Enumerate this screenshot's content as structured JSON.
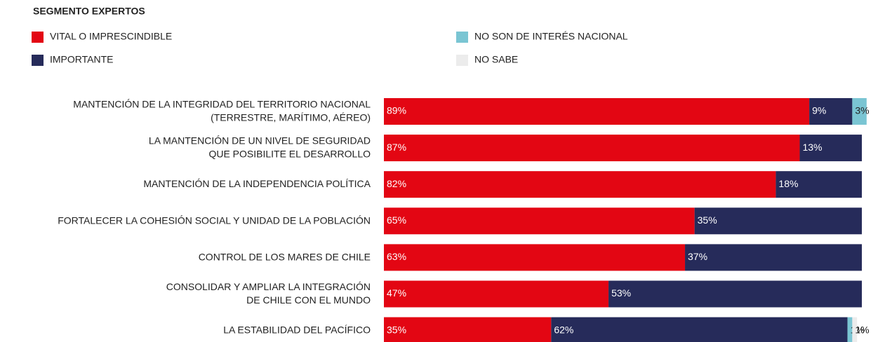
{
  "chart_data": {
    "type": "stacked-bar-horizontal",
    "title": "SEGMENTO EXPERTOS",
    "categories": [
      "MANTENCIÓN DE LA INTEGRIDAD DEL TERRITORIO NACIONAL\n(TERRESTRE, MARÍTIMO, AÉREO)",
      "LA MANTENCIÓN DE UN NIVEL DE SEGURIDAD\nQUE POSIBILITE EL DESARROLLO",
      "MANTENCIÓN DE LA INDEPENDENCIA POLÍTICA",
      "FORTALECER LA COHESIÓN SOCIAL Y UNIDAD DE LA POBLACIÓN",
      "CONTROL DE LOS MARES DE CHILE",
      "CONSOLIDAR Y AMPLIAR LA INTEGRACIÓN\nDE CHILE CON EL MUNDO",
      "LA ESTABILIDAD DEL PACÍFICO"
    ],
    "series": [
      {
        "name": "VITAL O IMPRESCINDIBLE",
        "color": "#e30613",
        "values": [
          89,
          87,
          82,
          65,
          63,
          47,
          35
        ],
        "value_labels": [
          "89%",
          "87%",
          "82%",
          "65%",
          "63%",
          "47%",
          "35%"
        ]
      },
      {
        "name": "IMPORTANTE",
        "color": "#262b5a",
        "values": [
          9,
          13,
          18,
          35,
          37,
          53,
          62
        ],
        "value_labels": [
          "9%",
          "13%",
          "18%",
          "35%",
          "37%",
          "53%",
          "62%"
        ]
      },
      {
        "name": "NO SON DE INTERÉS NACIONAL",
        "color": "#7ac5d3",
        "values": [
          3,
          null,
          null,
          null,
          null,
          null,
          1
        ],
        "value_labels": [
          "3%",
          null,
          null,
          null,
          null,
          null,
          "1%"
        ]
      },
      {
        "name": "NO SABE",
        "color": "#ececec",
        "values": [
          null,
          null,
          null,
          null,
          null,
          null,
          1
        ],
        "value_labels": [
          null,
          null,
          null,
          null,
          null,
          null,
          "1%"
        ]
      }
    ]
  }
}
